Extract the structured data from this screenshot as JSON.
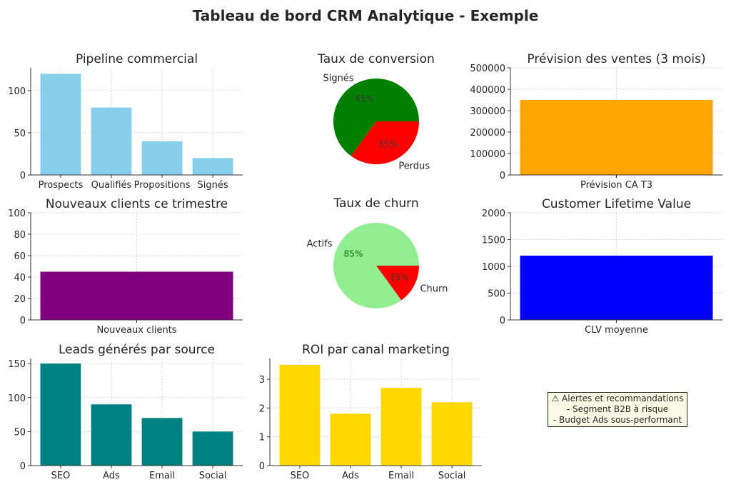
{
  "title": "Tableau de bord CRM Analytique - Exemple",
  "alert": {
    "heading": "⚠ Alertes et recommandations",
    "items": [
      "- Segment B2B à risque",
      "- Budget Ads sous-performant"
    ],
    "background": "#fafae6"
  },
  "chart_data": [
    {
      "id": "pipeline",
      "type": "bar",
      "title": "Pipeline commercial",
      "categories": [
        "Prospects",
        "Qualifiés",
        "Propositions",
        "Signés"
      ],
      "values": [
        120,
        80,
        40,
        20
      ],
      "ylim": [
        0,
        127
      ],
      "yticks": [
        0,
        50,
        100
      ],
      "color": "#87ceeb",
      "grid": true
    },
    {
      "id": "conversion",
      "type": "pie",
      "title": "Taux de conversion",
      "labels": [
        "Signés",
        "Perdus"
      ],
      "values": [
        65,
        35
      ],
      "pct_labels": [
        "65%",
        "35%"
      ],
      "colors": [
        "#008000",
        "#ff0000"
      ]
    },
    {
      "id": "forecast",
      "type": "bar",
      "title": "Prévision des ventes (3 mois)",
      "categories": [
        "Prévision CA T3"
      ],
      "values": [
        350000
      ],
      "ylim": [
        0,
        500000
      ],
      "yticks": [
        0,
        100000,
        200000,
        300000,
        400000,
        500000
      ],
      "color": "#ffa500",
      "grid": true
    },
    {
      "id": "new_clients",
      "type": "bar",
      "title": "Nouveaux clients ce trimestre",
      "categories": [
        "Nouveaux clients"
      ],
      "values": [
        45
      ],
      "ylim": [
        0,
        100
      ],
      "yticks": [
        0,
        20,
        40,
        60,
        80,
        100
      ],
      "color": "#800080",
      "grid": true
    },
    {
      "id": "churn",
      "type": "pie",
      "title": "Taux de churn",
      "labels": [
        "Actifs",
        "Churn"
      ],
      "values": [
        85,
        15
      ],
      "pct_labels": [
        "85%",
        "15%"
      ],
      "colors": [
        "#90ee90",
        "#ff0000"
      ]
    },
    {
      "id": "clv",
      "type": "bar",
      "title": "Customer Lifetime Value",
      "categories": [
        "CLV moyenne"
      ],
      "values": [
        1200
      ],
      "ylim": [
        0,
        2000
      ],
      "yticks": [
        0,
        500,
        1000,
        1500,
        2000
      ],
      "color": "#0000ff",
      "grid": true
    },
    {
      "id": "leads",
      "type": "bar",
      "title": "Leads générés par source",
      "categories": [
        "SEO",
        "Ads",
        "Email",
        "Social"
      ],
      "values": [
        150,
        90,
        70,
        50
      ],
      "ylim": [
        0,
        157.5
      ],
      "yticks": [
        0,
        50,
        100,
        150
      ],
      "color": "#008080",
      "grid": true
    },
    {
      "id": "roi",
      "type": "bar",
      "title": "ROI par canal marketing",
      "categories": [
        "SEO",
        "Ads",
        "Email",
        "Social"
      ],
      "values": [
        3.5,
        1.8,
        2.7,
        2.2
      ],
      "ylim": [
        0,
        3.72
      ],
      "yticks": [
        0,
        1,
        2,
        3
      ],
      "color": "#ffd700",
      "grid": true
    }
  ]
}
